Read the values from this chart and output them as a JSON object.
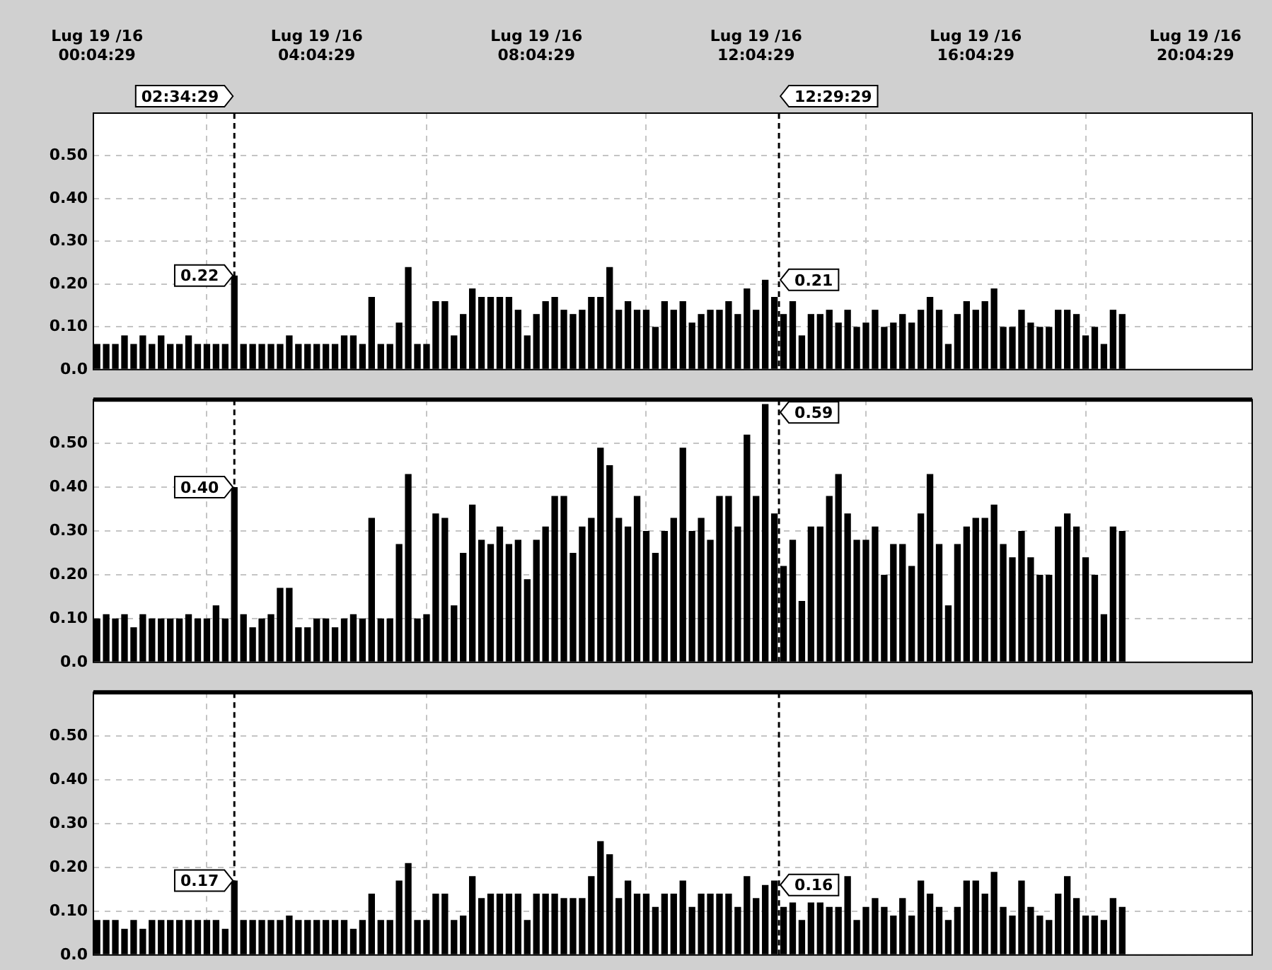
{
  "chart_data": [
    {
      "type": "bar",
      "color": "#000000",
      "grid": true,
      "xlim": [
        "--07-19T00:00",
        "--07-19T21:06"
      ],
      "ylim": [
        0,
        0.6
      ],
      "xticks": [
        {
          "value": "--07-19T00:04",
          "label": "Lug 19 /16\n00:04:29"
        },
        {
          "value": "--07-19T04:04",
          "label": "Lug 19 /16\n04:04:29"
        },
        {
          "value": "--07-19T08:04",
          "label": "Lug 19 /16\n08:04:29"
        },
        {
          "value": "--07-19T12:04",
          "label": "Lug 19 /16\n12:04:29"
        },
        {
          "value": "--07-19T16:04",
          "label": "Lug 19 /16\n16:04:29"
        },
        {
          "value": "--07-19T20:04",
          "label": "Lug 19 /16\n20:04:29"
        }
      ],
      "yticks": [
        {
          "value": 0,
          "label": "0.0"
        },
        {
          "value": 0.1,
          "label": "0.10"
        },
        {
          "value": 0.2,
          "label": "0.20"
        },
        {
          "value": 0.3,
          "label": "0.30"
        },
        {
          "value": 0.4,
          "label": "0.40"
        },
        {
          "value": 0.5,
          "label": "0.50"
        }
      ],
      "x": [
        "--07-19T00:04",
        "--07-19T00:14",
        "--07-19T00:24",
        "--07-19T00:34",
        "--07-19T00:44",
        "--07-19T00:54",
        "--07-19T01:04",
        "--07-19T01:14",
        "--07-19T01:24",
        "--07-19T01:34",
        "--07-19T01:44",
        "--07-19T01:54",
        "--07-19T02:04",
        "--07-19T02:14",
        "--07-19T02:24",
        "--07-19T02:34",
        "--07-19T02:44",
        "--07-19T02:54",
        "--07-19T03:04",
        "--07-19T03:14",
        "--07-19T03:24",
        "--07-19T03:34",
        "--07-19T03:44",
        "--07-19T03:54",
        "--07-19T04:04",
        "--07-19T04:14",
        "--07-19T04:24",
        "--07-19T04:34",
        "--07-19T04:44",
        "--07-19T04:54",
        "--07-19T05:04",
        "--07-19T05:14",
        "--07-19T05:24",
        "--07-19T05:34",
        "--07-19T05:44",
        "--07-19T05:54",
        "--07-19T06:04",
        "--07-19T06:14",
        "--07-19T06:24",
        "--07-19T06:34",
        "--07-19T06:44",
        "--07-19T06:54",
        "--07-19T07:04",
        "--07-19T07:14",
        "--07-19T07:24",
        "--07-19T07:34",
        "--07-19T07:44",
        "--07-19T07:54",
        "--07-19T08:04",
        "--07-19T08:14",
        "--07-19T08:24",
        "--07-19T08:34",
        "--07-19T08:44",
        "--07-19T08:54",
        "--07-19T09:04",
        "--07-19T09:14",
        "--07-19T09:24",
        "--07-19T09:34",
        "--07-19T09:44",
        "--07-19T09:54",
        "--07-19T10:04",
        "--07-19T10:14",
        "--07-19T10:24",
        "--07-19T10:34",
        "--07-19T10:44",
        "--07-19T10:54",
        "--07-19T11:04",
        "--07-19T11:14",
        "--07-19T11:24",
        "--07-19T11:34",
        "--07-19T11:44",
        "--07-19T11:54",
        "--07-19T12:04",
        "--07-19T12:14",
        "--07-19T12:24",
        "--07-19T12:34",
        "--07-19T12:44",
        "--07-19T12:54",
        "--07-19T13:04",
        "--07-19T13:14",
        "--07-19T13:24",
        "--07-19T13:34",
        "--07-19T13:44",
        "--07-19T13:54",
        "--07-19T14:04",
        "--07-19T14:14",
        "--07-19T14:24",
        "--07-19T14:34",
        "--07-19T14:44",
        "--07-19T14:54",
        "--07-19T15:04",
        "--07-19T15:14",
        "--07-19T15:24",
        "--07-19T15:34",
        "--07-19T15:44",
        "--07-19T15:54",
        "--07-19T16:04",
        "--07-19T16:14",
        "--07-19T16:24",
        "--07-19T16:34",
        "--07-19T16:44",
        "--07-19T16:54",
        "--07-19T17:04",
        "--07-19T17:14",
        "--07-19T17:24",
        "--07-19T17:34",
        "--07-19T17:44",
        "--07-19T17:54",
        "--07-19T18:04",
        "--07-19T18:14",
        "--07-19T18:24",
        "--07-19T18:34",
        "--07-19T18:44"
      ],
      "values": [
        0.06,
        0.06,
        0.06,
        0.08,
        0.06,
        0.08,
        0.06,
        0.08,
        0.06,
        0.06,
        0.08,
        0.06,
        0.06,
        0.06,
        0.06,
        0.22,
        0.06,
        0.06,
        0.06,
        0.06,
        0.06,
        0.08,
        0.06,
        0.06,
        0.06,
        0.06,
        0.06,
        0.08,
        0.08,
        0.06,
        0.17,
        0.06,
        0.06,
        0.11,
        0.24,
        0.06,
        0.06,
        0.16,
        0.16,
        0.08,
        0.13,
        0.19,
        0.17,
        0.17,
        0.17,
        0.17,
        0.14,
        0.08,
        0.13,
        0.16,
        0.17,
        0.14,
        0.13,
        0.14,
        0.17,
        0.17,
        0.24,
        0.14,
        0.16,
        0.14,
        0.14,
        0.1,
        0.16,
        0.14,
        0.16,
        0.11,
        0.13,
        0.14,
        0.14,
        0.16,
        0.13,
        0.19,
        0.14,
        0.21,
        0.17,
        0.13,
        0.16,
        0.08,
        0.13,
        0.13,
        0.14,
        0.11,
        0.14,
        0.1,
        0.11,
        0.14,
        0.1,
        0.11,
        0.13,
        0.11,
        0.14,
        0.17,
        0.14,
        0.06,
        0.13,
        0.16,
        0.14,
        0.16,
        0.19,
        0.1,
        0.1,
        0.14,
        0.11,
        0.1,
        0.1,
        0.14,
        0.14,
        0.13,
        0.08,
        0.1,
        0.06,
        0.14,
        0.13
      ],
      "ref_lines": [
        {
          "axis": "x",
          "value": "--07-19T02:34",
          "label": "02:34:29",
          "color": "#000000",
          "line_style": "dashed"
        },
        {
          "axis": "x",
          "value": "--07-19T12:29",
          "label": "12:29:29",
          "color": "#000000",
          "line_style": "dashed"
        }
      ],
      "annotations": [
        {
          "text": "0.22",
          "x": "--07-19T02:34",
          "y": 0.22
        },
        {
          "text": "0.21",
          "x": "--07-19T12:14",
          "y": 0.21
        }
      ]
    },
    {
      "type": "bar",
      "color": "#000000",
      "grid": true,
      "tick_labels": "y",
      "xlim": [
        "--07-19T00:00",
        "--07-19T21:06"
      ],
      "ylim": [
        0,
        0.6
      ],
      "xticks": [
        "--07-19T00:04",
        "--07-19T04:04",
        "--07-19T08:04",
        "--07-19T12:04",
        "--07-19T16:04",
        "--07-19T20:04"
      ],
      "yticks": [
        {
          "value": 0,
          "label": "0.0"
        },
        {
          "value": 0.1,
          "label": "0.10"
        },
        {
          "value": 0.2,
          "label": "0.20"
        },
        {
          "value": 0.3,
          "label": "0.30"
        },
        {
          "value": 0.4,
          "label": "0.40"
        },
        {
          "value": 0.5,
          "label": "0.50"
        }
      ],
      "x": [
        "--07-19T00:04",
        "--07-19T00:14",
        "--07-19T00:24",
        "--07-19T00:34",
        "--07-19T00:44",
        "--07-19T00:54",
        "--07-19T01:04",
        "--07-19T01:14",
        "--07-19T01:24",
        "--07-19T01:34",
        "--07-19T01:44",
        "--07-19T01:54",
        "--07-19T02:04",
        "--07-19T02:14",
        "--07-19T02:24",
        "--07-19T02:34",
        "--07-19T02:44",
        "--07-19T02:54",
        "--07-19T03:04",
        "--07-19T03:14",
        "--07-19T03:24",
        "--07-19T03:34",
        "--07-19T03:44",
        "--07-19T03:54",
        "--07-19T04:04",
        "--07-19T04:14",
        "--07-19T04:24",
        "--07-19T04:34",
        "--07-19T04:44",
        "--07-19T04:54",
        "--07-19T05:04",
        "--07-19T05:14",
        "--07-19T05:24",
        "--07-19T05:34",
        "--07-19T05:44",
        "--07-19T05:54",
        "--07-19T06:04",
        "--07-19T06:14",
        "--07-19T06:24",
        "--07-19T06:34",
        "--07-19T06:44",
        "--07-19T06:54",
        "--07-19T07:04",
        "--07-19T07:14",
        "--07-19T07:24",
        "--07-19T07:34",
        "--07-19T07:44",
        "--07-19T07:54",
        "--07-19T08:04",
        "--07-19T08:14",
        "--07-19T08:24",
        "--07-19T08:34",
        "--07-19T08:44",
        "--07-19T08:54",
        "--07-19T09:04",
        "--07-19T09:14",
        "--07-19T09:24",
        "--07-19T09:34",
        "--07-19T09:44",
        "--07-19T09:54",
        "--07-19T10:04",
        "--07-19T10:14",
        "--07-19T10:24",
        "--07-19T10:34",
        "--07-19T10:44",
        "--07-19T10:54",
        "--07-19T11:04",
        "--07-19T11:14",
        "--07-19T11:24",
        "--07-19T11:34",
        "--07-19T11:44",
        "--07-19T11:54",
        "--07-19T12:04",
        "--07-19T12:14",
        "--07-19T12:24",
        "--07-19T12:34",
        "--07-19T12:44",
        "--07-19T12:54",
        "--07-19T13:04",
        "--07-19T13:14",
        "--07-19T13:24",
        "--07-19T13:34",
        "--07-19T13:44",
        "--07-19T13:54",
        "--07-19T14:04",
        "--07-19T14:14",
        "--07-19T14:24",
        "--07-19T14:34",
        "--07-19T14:44",
        "--07-19T14:54",
        "--07-19T15:04",
        "--07-19T15:14",
        "--07-19T15:24",
        "--07-19T15:34",
        "--07-19T15:44",
        "--07-19T15:54",
        "--07-19T16:04",
        "--07-19T16:14",
        "--07-19T16:24",
        "--07-19T16:34",
        "--07-19T16:44",
        "--07-19T16:54",
        "--07-19T17:04",
        "--07-19T17:14",
        "--07-19T17:24",
        "--07-19T17:34",
        "--07-19T17:44",
        "--07-19T17:54",
        "--07-19T18:04",
        "--07-19T18:14",
        "--07-19T18:24",
        "--07-19T18:34",
        "--07-19T18:44"
      ],
      "values": [
        0.1,
        0.11,
        0.1,
        0.11,
        0.08,
        0.11,
        0.1,
        0.1,
        0.1,
        0.1,
        0.11,
        0.1,
        0.1,
        0.13,
        0.1,
        0.4,
        0.11,
        0.08,
        0.1,
        0.11,
        0.17,
        0.17,
        0.08,
        0.08,
        0.1,
        0.1,
        0.08,
        0.1,
        0.11,
        0.1,
        0.33,
        0.1,
        0.1,
        0.27,
        0.43,
        0.1,
        0.11,
        0.34,
        0.33,
        0.13,
        0.25,
        0.36,
        0.28,
        0.27,
        0.31,
        0.27,
        0.28,
        0.19,
        0.28,
        0.31,
        0.38,
        0.38,
        0.25,
        0.31,
        0.33,
        0.49,
        0.45,
        0.33,
        0.31,
        0.38,
        0.3,
        0.25,
        0.3,
        0.33,
        0.49,
        0.3,
        0.33,
        0.28,
        0.38,
        0.38,
        0.31,
        0.52,
        0.38,
        0.59,
        0.34,
        0.22,
        0.28,
        0.14,
        0.31,
        0.31,
        0.38,
        0.43,
        0.34,
        0.28,
        0.28,
        0.31,
        0.2,
        0.27,
        0.27,
        0.22,
        0.34,
        0.43,
        0.27,
        0.13,
        0.27,
        0.31,
        0.33,
        0.33,
        0.36,
        0.27,
        0.24,
        0.3,
        0.24,
        0.2,
        0.2,
        0.31,
        0.34,
        0.31,
        0.24,
        0.2,
        0.11,
        0.31,
        0.3
      ],
      "ref_lines": [
        {
          "axis": "x",
          "value": "--07-19T02:34",
          "color": "#000000",
          "line_style": "dashed"
        },
        {
          "axis": "x",
          "value": "--07-19T12:29",
          "color": "#000000",
          "line_style": "dashed"
        }
      ],
      "annotations": [
        {
          "text": "0.40",
          "x": "--07-19T02:34",
          "y": 0.4
        },
        {
          "text": "0.59",
          "x": "--07-19T12:14",
          "y": 0.59
        }
      ]
    },
    {
      "type": "bar",
      "color": "#000000",
      "grid": true,
      "tick_labels": "y",
      "xlim": [
        "--07-19T00:00",
        "--07-19T21:06"
      ],
      "ylim": [
        0,
        0.6
      ],
      "xticks": [
        "--07-19T00:04",
        "--07-19T04:04",
        "--07-19T08:04",
        "--07-19T12:04",
        "--07-19T16:04",
        "--07-19T20:04"
      ],
      "yticks": [
        {
          "value": 0,
          "label": "0.0"
        },
        {
          "value": 0.1,
          "label": "0.10"
        },
        {
          "value": 0.2,
          "label": "0.20"
        },
        {
          "value": 0.3,
          "label": "0.30"
        },
        {
          "value": 0.4,
          "label": "0.40"
        },
        {
          "value": 0.5,
          "label": "0.50"
        }
      ],
      "x": [
        "--07-19T00:04",
        "--07-19T00:14",
        "--07-19T00:24",
        "--07-19T00:34",
        "--07-19T00:44",
        "--07-19T00:54",
        "--07-19T01:04",
        "--07-19T01:14",
        "--07-19T01:24",
        "--07-19T01:34",
        "--07-19T01:44",
        "--07-19T01:54",
        "--07-19T02:04",
        "--07-19T02:14",
        "--07-19T02:24",
        "--07-19T02:34",
        "--07-19T02:44",
        "--07-19T02:54",
        "--07-19T03:04",
        "--07-19T03:14",
        "--07-19T03:24",
        "--07-19T03:34",
        "--07-19T03:44",
        "--07-19T03:54",
        "--07-19T04:04",
        "--07-19T04:14",
        "--07-19T04:24",
        "--07-19T04:34",
        "--07-19T04:44",
        "--07-19T04:54",
        "--07-19T05:04",
        "--07-19T05:14",
        "--07-19T05:24",
        "--07-19T05:34",
        "--07-19T05:44",
        "--07-19T05:54",
        "--07-19T06:04",
        "--07-19T06:14",
        "--07-19T06:24",
        "--07-19T06:34",
        "--07-19T06:44",
        "--07-19T06:54",
        "--07-19T07:04",
        "--07-19T07:14",
        "--07-19T07:24",
        "--07-19T07:34",
        "--07-19T07:44",
        "--07-19T07:54",
        "--07-19T08:04",
        "--07-19T08:14",
        "--07-19T08:24",
        "--07-19T08:34",
        "--07-19T08:44",
        "--07-19T08:54",
        "--07-19T09:04",
        "--07-19T09:14",
        "--07-19T09:24",
        "--07-19T09:34",
        "--07-19T09:44",
        "--07-19T09:54",
        "--07-19T10:04",
        "--07-19T10:14",
        "--07-19T10:24",
        "--07-19T10:34",
        "--07-19T10:44",
        "--07-19T10:54",
        "--07-19T11:04",
        "--07-19T11:14",
        "--07-19T11:24",
        "--07-19T11:34",
        "--07-19T11:44",
        "--07-19T11:54",
        "--07-19T12:04",
        "--07-19T12:14",
        "--07-19T12:24",
        "--07-19T12:34",
        "--07-19T12:44",
        "--07-19T12:54",
        "--07-19T13:04",
        "--07-19T13:14",
        "--07-19T13:24",
        "--07-19T13:34",
        "--07-19T13:44",
        "--07-19T13:54",
        "--07-19T14:04",
        "--07-19T14:14",
        "--07-19T14:24",
        "--07-19T14:34",
        "--07-19T14:44",
        "--07-19T14:54",
        "--07-19T15:04",
        "--07-19T15:14",
        "--07-19T15:24",
        "--07-19T15:34",
        "--07-19T15:44",
        "--07-19T15:54",
        "--07-19T16:04",
        "--07-19T16:14",
        "--07-19T16:24",
        "--07-19T16:34",
        "--07-19T16:44",
        "--07-19T16:54",
        "--07-19T17:04",
        "--07-19T17:14",
        "--07-19T17:24",
        "--07-19T17:34",
        "--07-19T17:44",
        "--07-19T17:54",
        "--07-19T18:04",
        "--07-19T18:14",
        "--07-19T18:24",
        "--07-19T18:34",
        "--07-19T18:44"
      ],
      "values": [
        0.08,
        0.08,
        0.08,
        0.06,
        0.08,
        0.06,
        0.08,
        0.08,
        0.08,
        0.08,
        0.08,
        0.08,
        0.08,
        0.08,
        0.06,
        0.17,
        0.08,
        0.08,
        0.08,
        0.08,
        0.08,
        0.09,
        0.08,
        0.08,
        0.08,
        0.08,
        0.08,
        0.08,
        0.06,
        0.08,
        0.14,
        0.08,
        0.08,
        0.17,
        0.21,
        0.08,
        0.08,
        0.14,
        0.14,
        0.08,
        0.09,
        0.18,
        0.13,
        0.14,
        0.14,
        0.14,
        0.14,
        0.08,
        0.14,
        0.14,
        0.14,
        0.13,
        0.13,
        0.13,
        0.18,
        0.26,
        0.23,
        0.13,
        0.17,
        0.14,
        0.14,
        0.11,
        0.14,
        0.14,
        0.17,
        0.11,
        0.14,
        0.14,
        0.14,
        0.14,
        0.11,
        0.18,
        0.13,
        0.16,
        0.17,
        0.11,
        0.12,
        0.08,
        0.12,
        0.12,
        0.11,
        0.11,
        0.18,
        0.08,
        0.11,
        0.13,
        0.11,
        0.09,
        0.13,
        0.09,
        0.17,
        0.14,
        0.11,
        0.08,
        0.11,
        0.17,
        0.17,
        0.14,
        0.19,
        0.11,
        0.09,
        0.17,
        0.11,
        0.09,
        0.08,
        0.14,
        0.18,
        0.13,
        0.09,
        0.09,
        0.08,
        0.13,
        0.11
      ],
      "ref_lines": [
        {
          "axis": "x",
          "value": "--07-19T02:34",
          "color": "#000000",
          "line_style": "dashed"
        },
        {
          "axis": "x",
          "value": "--07-19T12:29",
          "color": "#000000",
          "line_style": "dashed"
        }
      ],
      "annotations": [
        {
          "text": "0.17",
          "x": "--07-19T02:34",
          "y": 0.17
        },
        {
          "text": "0.16",
          "x": "--07-19T12:14",
          "y": 0.16
        }
      ]
    }
  ]
}
